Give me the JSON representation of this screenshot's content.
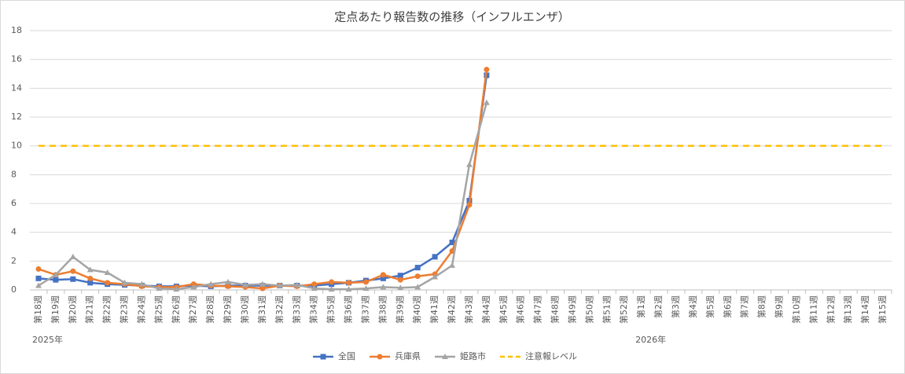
{
  "chart_data": {
    "type": "line",
    "title": "定点あたり報告数の推移（インフルエンザ）",
    "categories": [
      "第18週",
      "第19週",
      "第20週",
      "第21週",
      "第22週",
      "第23週",
      "第24週",
      "第25週",
      "第26週",
      "第27週",
      "第28週",
      "第29週",
      "第30週",
      "第31週",
      "第32週",
      "第33週",
      "第34週",
      "第35週",
      "第36週",
      "第37週",
      "第38週",
      "第39週",
      "第40週",
      "第41週",
      "第42週",
      "第43週",
      "第44週",
      "第45週",
      "第46週",
      "第47週",
      "第48週",
      "第49週",
      "第50週",
      "第51週",
      "第52週",
      "第1週",
      "第2週",
      "第3週",
      "第4週",
      "第5週",
      "第6週",
      "第7週",
      "第8週",
      "第9週",
      "第10週",
      "第11週",
      "第12週",
      "第13週",
      "第14週",
      "第15週"
    ],
    "x_groups": [
      {
        "label": "2025年",
        "count": 35
      },
      {
        "label": "2026年",
        "count": 15
      }
    ],
    "series": [
      {
        "name": "全国",
        "color": "#4472c4",
        "marker": "square",
        "values": [
          0.8,
          0.7,
          0.75,
          0.5,
          0.4,
          0.35,
          0.3,
          0.25,
          0.25,
          0.3,
          0.25,
          0.3,
          0.3,
          0.3,
          0.3,
          0.3,
          0.3,
          0.4,
          0.5,
          0.65,
          0.8,
          1.0,
          1.55,
          2.3,
          3.3,
          6.2,
          14.9,
          null,
          null,
          null,
          null,
          null,
          null,
          null,
          null,
          null,
          null,
          null,
          null,
          null,
          null,
          null,
          null,
          null,
          null,
          null,
          null,
          null,
          null,
          null
        ]
      },
      {
        "name": "兵庫県",
        "color": "#ed7d31",
        "marker": "circle",
        "values": [
          1.45,
          1.05,
          1.3,
          0.8,
          0.5,
          0.4,
          0.25,
          0.2,
          0.2,
          0.4,
          0.3,
          0.25,
          0.2,
          0.1,
          0.3,
          0.25,
          0.4,
          0.55,
          0.5,
          0.55,
          1.05,
          0.7,
          0.95,
          1.1,
          2.7,
          5.9,
          15.3,
          null,
          null,
          null,
          null,
          null,
          null,
          null,
          null,
          null,
          null,
          null,
          null,
          null,
          null,
          null,
          null,
          null,
          null,
          null,
          null,
          null,
          null,
          null
        ]
      },
      {
        "name": "姫路市",
        "color": "#a5a5a5",
        "marker": "triangle",
        "values": [
          0.3,
          1.05,
          2.3,
          1.4,
          1.2,
          0.5,
          0.4,
          0.1,
          0.05,
          0.2,
          0.4,
          0.55,
          0.35,
          0.4,
          0.3,
          0.35,
          0.1,
          0.05,
          0.05,
          0.1,
          0.2,
          0.15,
          0.2,
          0.9,
          1.7,
          8.7,
          13.0,
          null,
          null,
          null,
          null,
          null,
          null,
          null,
          null,
          null,
          null,
          null,
          null,
          null,
          null,
          null,
          null,
          null,
          null,
          null,
          null,
          null,
          null,
          null
        ]
      },
      {
        "name": "注意報レベル",
        "color": "#ffc000",
        "dashed": true,
        "values": [
          10,
          10,
          10,
          10,
          10,
          10,
          10,
          10,
          10,
          10,
          10,
          10,
          10,
          10,
          10,
          10,
          10,
          10,
          10,
          10,
          10,
          10,
          10,
          10,
          10,
          10,
          10,
          10,
          10,
          10,
          10,
          10,
          10,
          10,
          10,
          10,
          10,
          10,
          10,
          10,
          10,
          10,
          10,
          10,
          10,
          10,
          10,
          10,
          10,
          10
        ]
      }
    ],
    "ylim": [
      0,
      18
    ],
    "yticks": [
      0,
      2,
      4,
      6,
      8,
      10,
      12,
      14,
      16,
      18
    ],
    "grid": true,
    "legend": "bottom"
  }
}
